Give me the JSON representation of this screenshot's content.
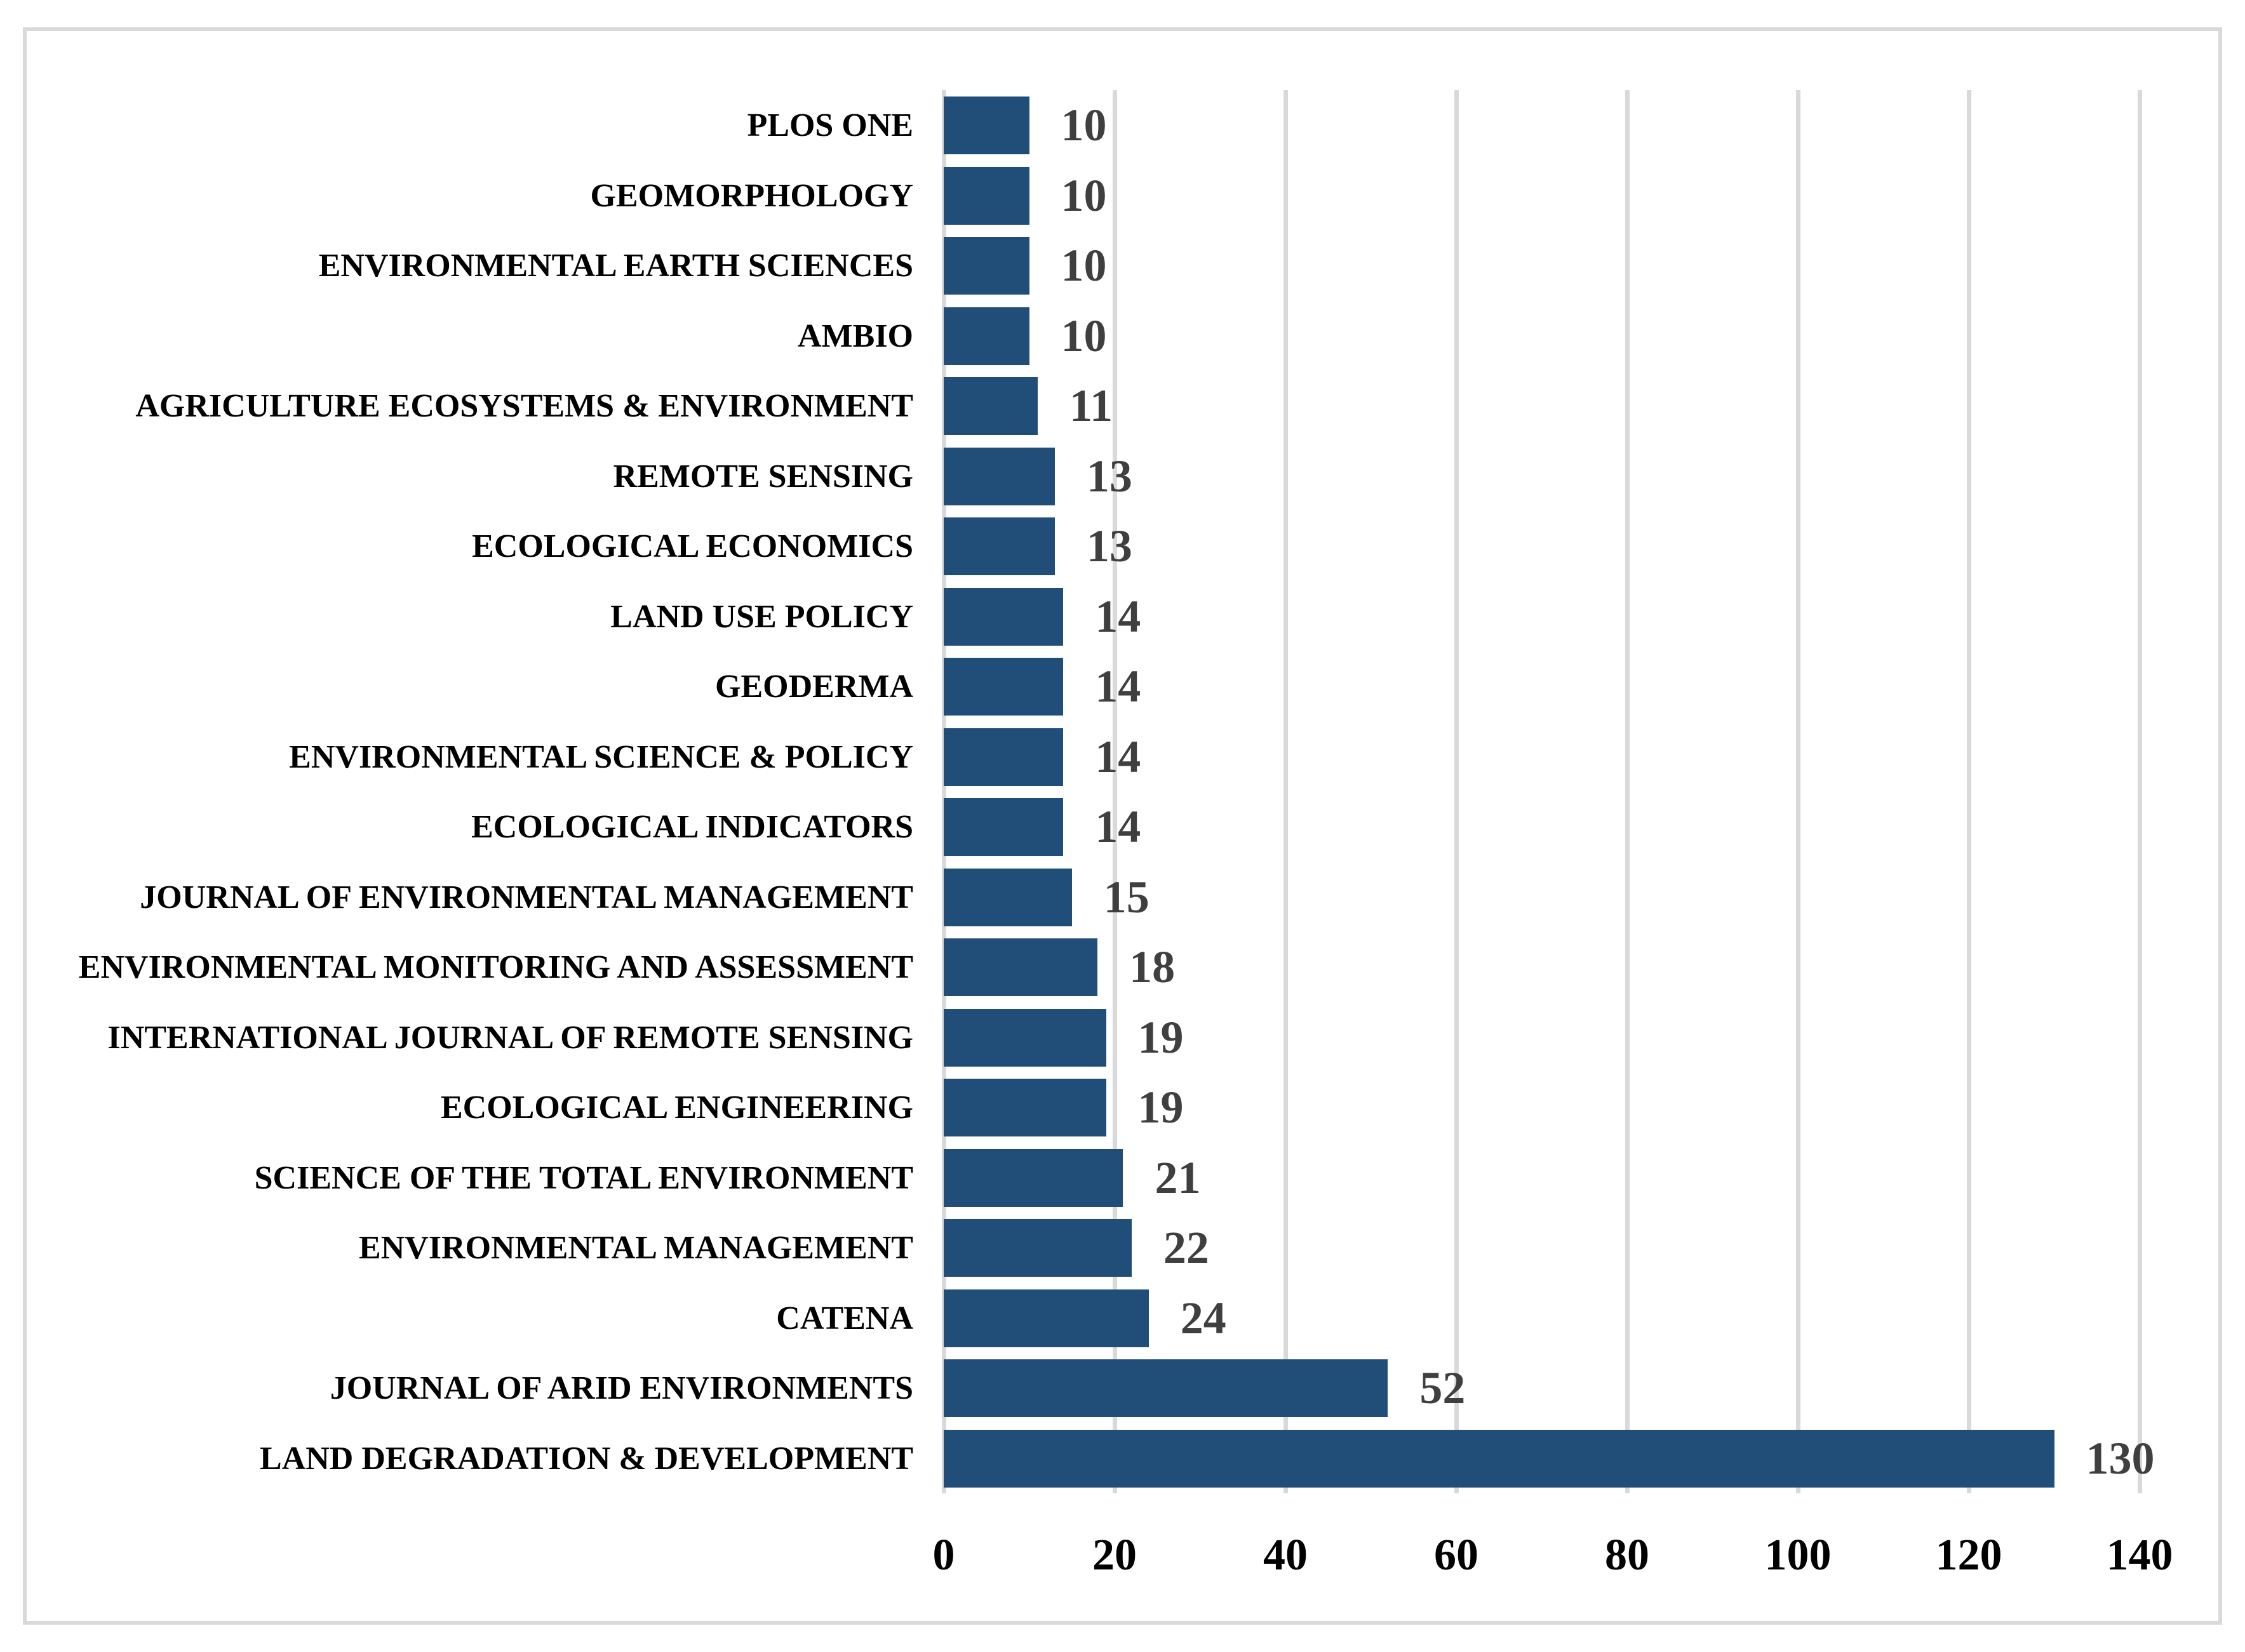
{
  "chart_data": {
    "type": "bar",
    "orientation": "horizontal",
    "categories": [
      "PLOS ONE",
      "GEOMORPHOLOGY",
      "ENVIRONMENTAL EARTH SCIENCES",
      "AMBIO",
      "AGRICULTURE ECOSYSTEMS & ENVIRONMENT",
      "REMOTE SENSING",
      "ECOLOGICAL ECONOMICS",
      "LAND USE POLICY",
      "GEODERMA",
      "ENVIRONMENTAL SCIENCE & POLICY",
      "ECOLOGICAL INDICATORS",
      "JOURNAL OF ENVIRONMENTAL MANAGEMENT",
      "ENVIRONMENTAL MONITORING AND ASSESSMENT",
      "INTERNATIONAL JOURNAL OF REMOTE SENSING",
      "ECOLOGICAL ENGINEERING",
      "SCIENCE OF THE TOTAL ENVIRONMENT",
      "ENVIRONMENTAL MANAGEMENT",
      "CATENA",
      "JOURNAL OF ARID ENVIRONMENTS",
      "LAND DEGRADATION & DEVELOPMENT"
    ],
    "values": [
      10,
      10,
      10,
      10,
      11,
      13,
      13,
      14,
      14,
      14,
      14,
      15,
      18,
      19,
      19,
      21,
      22,
      24,
      52,
      130
    ],
    "x_axis_ticks": [
      0,
      20,
      40,
      60,
      80,
      100,
      120,
      140
    ],
    "xlim": [
      0,
      140
    ],
    "grid": "vertical gridlines every 20, light gray, on",
    "legend": "none",
    "xlabel": "",
    "ylabel": "",
    "bar_color": "#214e78",
    "gridline_color": "#d9d9d9",
    "frame_border_color": "#d9d9d9",
    "value_label_color": "#3f3f3f",
    "category_label_color": "#000000"
  }
}
